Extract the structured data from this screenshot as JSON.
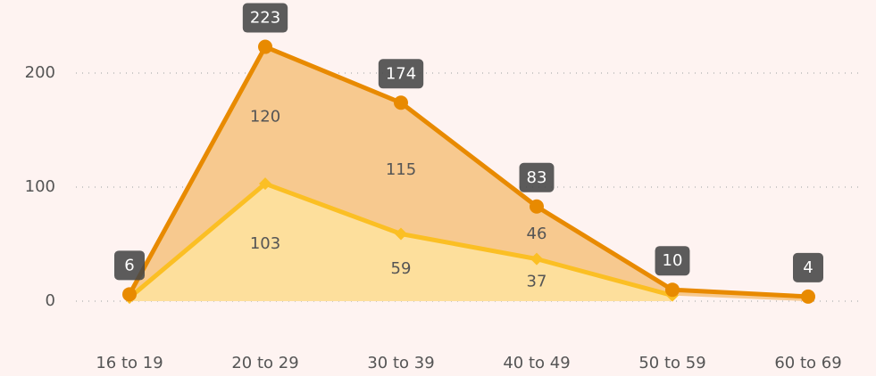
{
  "chart_data": {
    "type": "stacked_area",
    "categories": [
      "16 to 19",
      "20 to 29",
      "30 to 39",
      "40 to 49",
      "50 to 59",
      "60 to 69"
    ],
    "series": [
      {
        "color": "#fbbf24",
        "fill": "#fddf9c",
        "values": [
          3,
          103,
          59,
          37,
          5,
          null
        ],
        "value_labels": [
          null,
          "103",
          "59",
          "37",
          null,
          null
        ]
      },
      {
        "color": "#e88a00",
        "fill": "#f7c98f",
        "values": [
          3,
          120,
          115,
          46,
          5,
          4
        ],
        "value_labels": [
          null,
          "120",
          "115",
          "46",
          null,
          null
        ]
      }
    ],
    "totals": [
      6,
      223,
      174,
      83,
      10,
      4
    ],
    "ylim": [
      0,
      250
    ],
    "yticks": [
      0,
      100,
      200
    ],
    "grid": true
  }
}
